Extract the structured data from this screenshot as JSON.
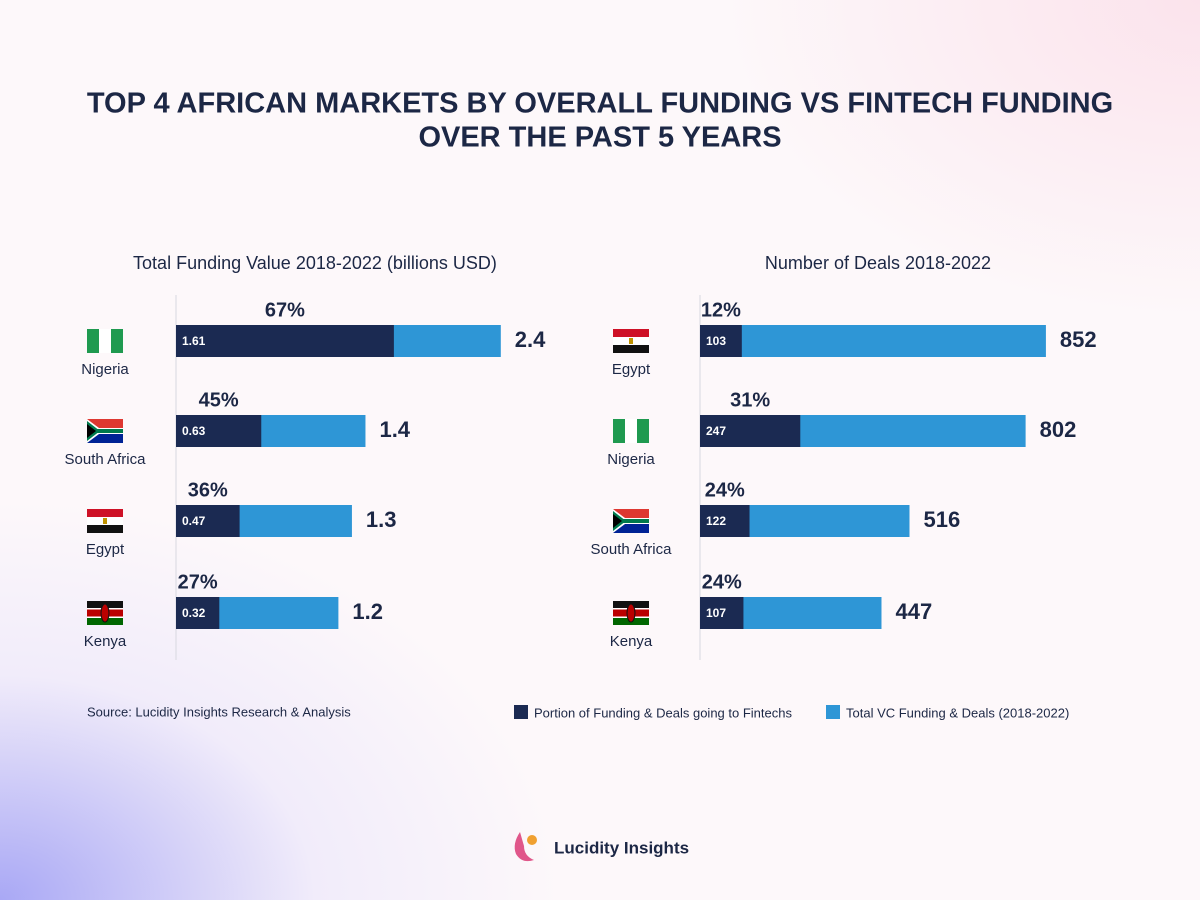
{
  "title_lines": [
    "TOP 4 AFRICAN MARKETS BY OVERALL FUNDING VS FINTECH FUNDING",
    "OVER THE PAST 5 YEARS"
  ],
  "source": "Source: Lucidity Insights Research & Analysis",
  "brand": "Lucidity Insights",
  "chart_data": [
    {
      "type": "bar",
      "orientation": "horizontal",
      "title": "Total Funding Value 2018-2022 (billions USD)",
      "categories": [
        "Nigeria",
        "South Africa",
        "Egypt",
        "Kenya"
      ],
      "xlim": [
        0,
        3
      ],
      "series": [
        {
          "name": "Portion of Funding & Deals going to Fintechs",
          "color": "#1b2a52",
          "values": [
            1.61,
            0.63,
            0.47,
            0.32
          ]
        },
        {
          "name": "Total VC Funding & Deals (2018-2022)",
          "color": "#2e96d6",
          "values": [
            2.4,
            1.4,
            1.3,
            1.2
          ]
        }
      ],
      "share": {
        "values": [
          67,
          45,
          36,
          27
        ],
        "value_labels": [
          "67%",
          "45%",
          "36%",
          "27%"
        ]
      }
    },
    {
      "type": "bar",
      "orientation": "horizontal",
      "title": "Number of Deals 2018-2022",
      "categories": [
        "Egypt",
        "Nigeria",
        "South Africa",
        "Kenya"
      ],
      "xlim": [
        0,
        1000
      ],
      "series": [
        {
          "color": "#1b2a52",
          "values": [
            103,
            247,
            122,
            107
          ]
        },
        {
          "color": "#2e96d6",
          "values": [
            852,
            802,
            516,
            447
          ]
        }
      ],
      "share": {
        "values": [
          12,
          31,
          24,
          24
        ],
        "value_labels": [
          "12%",
          "31%",
          "24%",
          "24%"
        ]
      }
    }
  ]
}
